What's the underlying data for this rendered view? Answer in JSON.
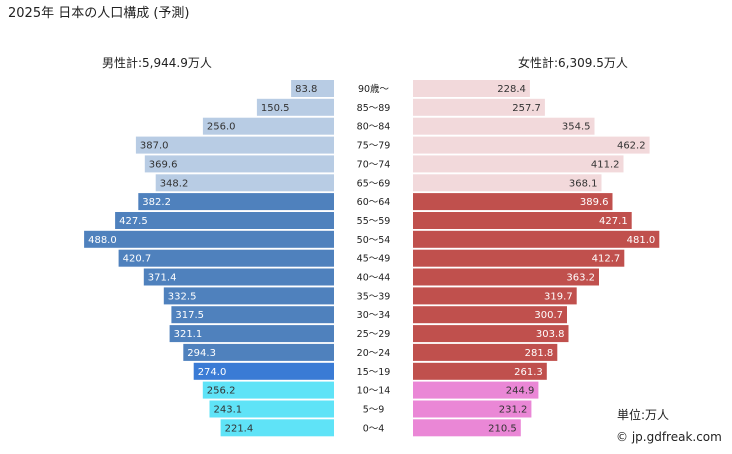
{
  "chart_data": {
    "type": "bar",
    "title": "2025年 日本の人口構成 (予測)",
    "male_label": "男性計:5,944.9万人",
    "female_label": "女性計:6,309.5万人",
    "unit_label": "単位:万人",
    "credit": "© jp.gdfreak.com",
    "categories": [
      "90歳〜",
      "85〜89",
      "80〜84",
      "75〜79",
      "70〜74",
      "65〜69",
      "60〜64",
      "55〜59",
      "50〜54",
      "45〜49",
      "40〜44",
      "35〜39",
      "30〜34",
      "25〜29",
      "20〜24",
      "15〜19",
      "10〜14",
      "5〜9",
      "0〜4"
    ],
    "series": [
      {
        "name": "男性",
        "values": [
          83.8,
          150.5,
          256.0,
          387.0,
          369.6,
          348.2,
          382.2,
          427.5,
          488.0,
          420.7,
          371.4,
          332.5,
          317.5,
          321.1,
          294.3,
          274.0,
          256.2,
          243.1,
          221.4
        ]
      },
      {
        "name": "女性",
        "values": [
          228.4,
          257.7,
          354.5,
          462.2,
          411.2,
          368.1,
          389.6,
          427.1,
          481.0,
          412.7,
          363.2,
          319.7,
          300.7,
          303.8,
          281.8,
          261.3,
          244.9,
          231.2,
          210.5
        ]
      }
    ],
    "value_labels_male": [
      "83.8",
      "150.5",
      "256.0",
      "387.0",
      "369.6",
      "348.2",
      "382.2",
      "427.5",
      "488.0",
      "420.7",
      "371.4",
      "332.5",
      "317.5",
      "321.1",
      "294.3",
      "274.0",
      "256.2",
      "243.1",
      "221.4"
    ],
    "value_labels_female": [
      "228.4",
      "257.7",
      "354.5",
      "462.2",
      "411.2",
      "368.1",
      "389.6",
      "427.1",
      "481.0",
      "412.7",
      "363.2",
      "319.7",
      "300.7",
      "303.8",
      "281.8",
      "261.3",
      "244.9",
      "231.2",
      "210.5"
    ],
    "colors": {
      "male_elderly": "#b8cce4",
      "male_working": "#4f81bd",
      "male_youth_highlight": "#3a7bd5",
      "male_child": "#5fe3f7",
      "female_elderly": "#f2d9db",
      "female_working": "#c0504d",
      "female_child": "#ea87d6",
      "label_light": "#ffffff",
      "label_dark": "#333333"
    }
  }
}
